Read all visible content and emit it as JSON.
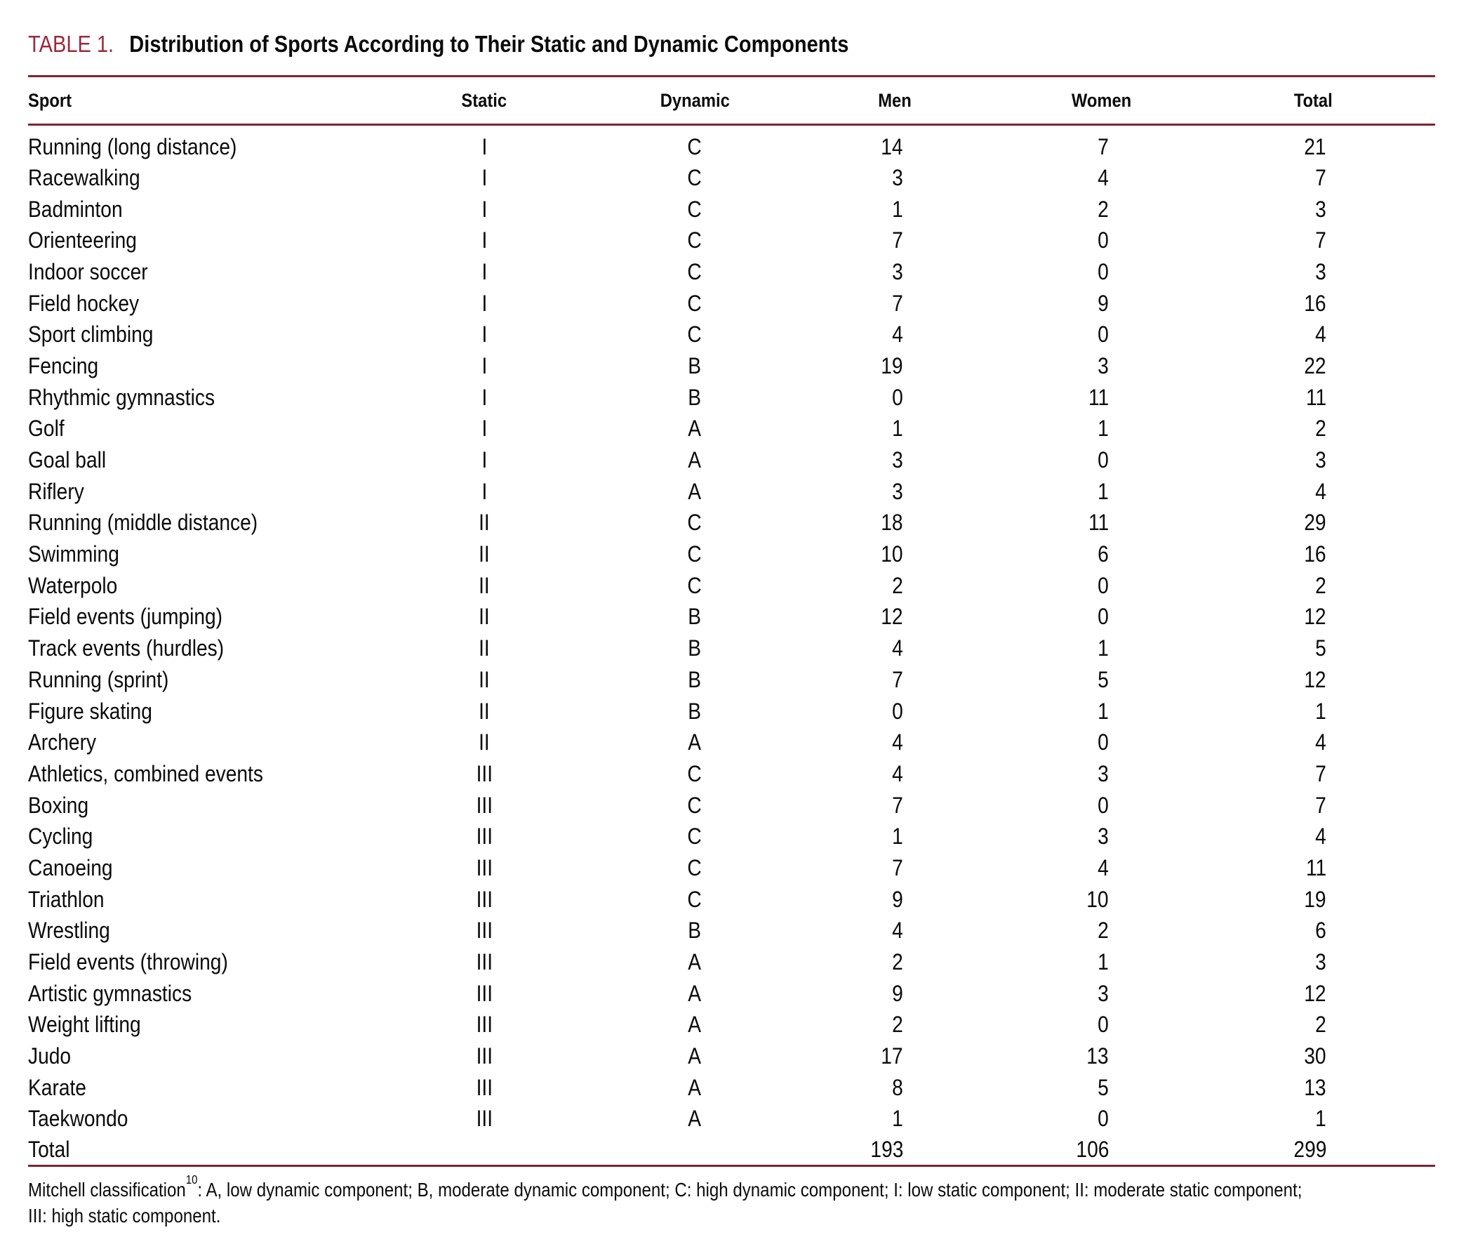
{
  "title": {
    "label": "TABLE 1.",
    "text": "Distribution of Sports According to Their Static and Dynamic Components"
  },
  "columns": [
    "Sport",
    "Static",
    "Dynamic",
    "Men",
    "Women",
    "Total"
  ],
  "table_data": {
    "rows": [
      [
        "Running (long distance)",
        "I",
        "C",
        "14",
        "7",
        "21"
      ],
      [
        "Racewalking",
        "I",
        "C",
        "3",
        "4",
        "7"
      ],
      [
        "Badminton",
        "I",
        "C",
        "1",
        "2",
        "3"
      ],
      [
        "Orienteering",
        "I",
        "C",
        "7",
        "0",
        "7"
      ],
      [
        "Indoor soccer",
        "I",
        "C",
        "3",
        "0",
        "3"
      ],
      [
        "Field hockey",
        "I",
        "C",
        "7",
        "9",
        "16"
      ],
      [
        "Sport climbing",
        "I",
        "C",
        "4",
        "0",
        "4"
      ],
      [
        "Fencing",
        "I",
        "B",
        "19",
        "3",
        "22"
      ],
      [
        "Rhythmic gymnastics",
        "I",
        "B",
        "0",
        "11",
        "11"
      ],
      [
        "Golf",
        "I",
        "A",
        "1",
        "1",
        "2"
      ],
      [
        "Goal ball",
        "I",
        "A",
        "3",
        "0",
        "3"
      ],
      [
        "Riflery",
        "I",
        "A",
        "3",
        "1",
        "4"
      ],
      [
        "Running (middle distance)",
        "II",
        "C",
        "18",
        "11",
        "29"
      ],
      [
        "Swimming",
        "II",
        "C",
        "10",
        "6",
        "16"
      ],
      [
        "Waterpolo",
        "II",
        "C",
        "2",
        "0",
        "2"
      ],
      [
        "Field events (jumping)",
        "II",
        "B",
        "12",
        "0",
        "12"
      ],
      [
        "Track events (hurdles)",
        "II",
        "B",
        "4",
        "1",
        "5"
      ],
      [
        "Running (sprint)",
        "II",
        "B",
        "7",
        "5",
        "12"
      ],
      [
        "Figure skating",
        "II",
        "B",
        "0",
        "1",
        "1"
      ],
      [
        "Archery",
        "II",
        "A",
        "4",
        "0",
        "4"
      ],
      [
        "Athletics, combined events",
        "III",
        "C",
        "4",
        "3",
        "7"
      ],
      [
        "Boxing",
        "III",
        "C",
        "7",
        "0",
        "7"
      ],
      [
        "Cycling",
        "III",
        "C",
        "1",
        "3",
        "4"
      ],
      [
        "Canoeing",
        "III",
        "C",
        "7",
        "4",
        "11"
      ],
      [
        "Triathlon",
        "III",
        "C",
        "9",
        "10",
        "19"
      ],
      [
        "Wrestling",
        "III",
        "B",
        "4",
        "2",
        "6"
      ],
      [
        "Field events (throwing)",
        "III",
        "A",
        "2",
        "1",
        "3"
      ],
      [
        "Artistic gymnastics",
        "III",
        "A",
        "9",
        "3",
        "12"
      ],
      [
        "Weight lifting",
        "III",
        "A",
        "2",
        "0",
        "2"
      ],
      [
        "Judo",
        "III",
        "A",
        "17",
        "13",
        "30"
      ],
      [
        "Karate",
        "III",
        "A",
        "8",
        "5",
        "13"
      ],
      [
        "Taekwondo",
        "III",
        "A",
        "1",
        "0",
        "1"
      ]
    ],
    "total_row": {
      "label": "Total",
      "static": "",
      "dynamic": "",
      "men": "193",
      "women": "106",
      "total": "299"
    }
  },
  "footnote": {
    "prefix": "Mitchell classification",
    "superscript": "10",
    "line1_rest": ": A, low dynamic component; B, moderate dynamic component; C: high dynamic component; I: low static component; II: moderate static component;",
    "line2": "III: high static component."
  },
  "colors": {
    "accent_red": "#9c2a3e",
    "rule_red": "#7d2433"
  }
}
